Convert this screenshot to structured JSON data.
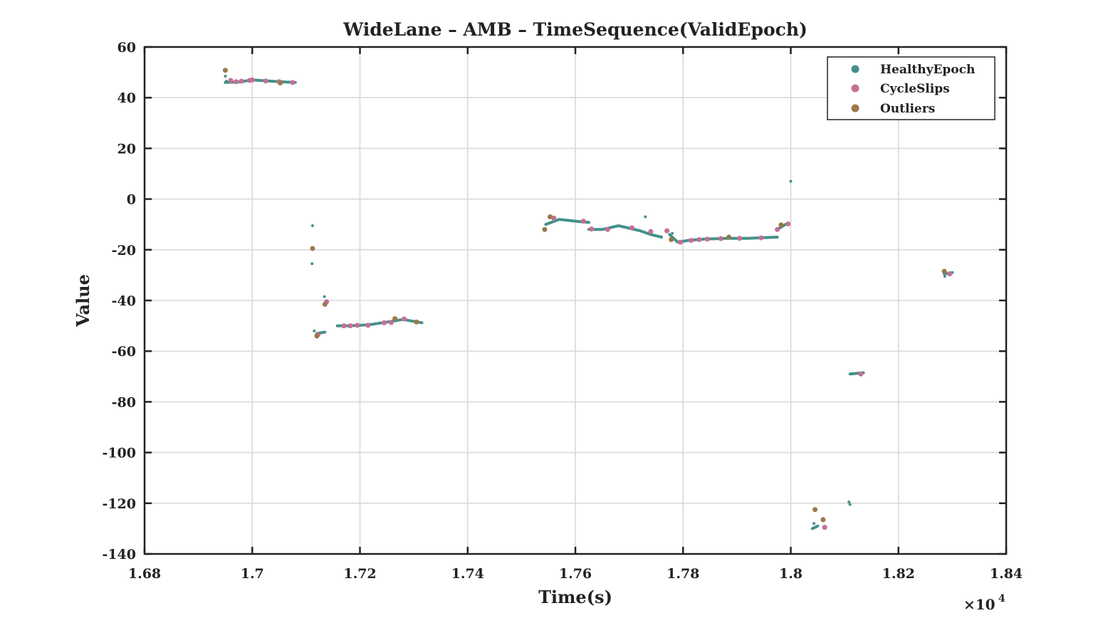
{
  "chart_data": {
    "type": "scatter",
    "title": "WideLane – AMB – TimeSequence(ValidEpoch)",
    "xlabel": "Time(s)",
    "ylabel": "Value",
    "x_multiplier_label": "×10",
    "x_multiplier_exponent": "4",
    "xlim": [
      1.68,
      1.84
    ],
    "ylim": [
      -140,
      60
    ],
    "x_ticks": [
      1.68,
      1.7,
      1.72,
      1.74,
      1.76,
      1.78,
      1.8,
      1.82,
      1.84
    ],
    "x_tick_labels": [
      "1.68",
      "1.7",
      "1.72",
      "1.74",
      "1.76",
      "1.78",
      "1.8",
      "1.82",
      "1.84"
    ],
    "y_ticks": [
      60,
      40,
      20,
      0,
      -20,
      -40,
      -60,
      -80,
      -100,
      -120,
      -140
    ],
    "y_tick_labels": [
      "60",
      "40",
      "20",
      "0",
      "-20",
      "-40",
      "-60",
      "-80",
      "-100",
      "-120",
      "-140"
    ],
    "grid": true,
    "legend_position": "top-right",
    "legend": [
      "HealthyEpoch",
      "CycleSlips",
      "Outliers"
    ],
    "colors": {
      "HealthyEpoch": "#43918a",
      "CycleSlips": "#c56f96",
      "Outliers": "#9a7848",
      "axis": "#222222",
      "grid": "#d9d9d9"
    },
    "healthy_segments": [
      {
        "x": [
          1.695,
          1.6975,
          1.7,
          1.703,
          1.706,
          1.708
        ],
        "y": [
          46.0,
          46.2,
          47.0,
          46.6,
          46.2,
          46.0
        ]
      },
      {
        "x": [
          1.712,
          1.7135
        ],
        "y": [
          -53.0,
          -52.5
        ]
      },
      {
        "x": [
          1.7158,
          1.718,
          1.72,
          1.722,
          1.725,
          1.728,
          1.7315
        ],
        "y": [
          -50.0,
          -50.0,
          -49.8,
          -49.5,
          -48.5,
          -47.5,
          -48.8
        ]
      },
      {
        "x": [
          1.7545,
          1.757,
          1.76,
          1.7625
        ],
        "y": [
          -10.0,
          -8.0,
          -8.7,
          -9.2
        ]
      },
      {
        "x": [
          1.7625,
          1.765,
          1.768,
          1.77,
          1.772,
          1.774,
          1.776
        ],
        "y": [
          -12.0,
          -12.0,
          -10.5,
          -11.5,
          -12.5,
          -14.0,
          -15.0
        ]
      },
      {
        "x": [
          1.7775,
          1.779,
          1.781,
          1.784,
          1.788,
          1.792,
          1.7975
        ],
        "y": [
          -14.0,
          -17.0,
          -16.3,
          -15.8,
          -15.5,
          -15.5,
          -15.0
        ]
      },
      {
        "x": [
          1.7975,
          1.799
        ],
        "y": [
          -12.0,
          -10.0
        ]
      },
      {
        "x": [
          1.804,
          1.805
        ],
        "y": [
          -130.0,
          -129.0
        ]
      },
      {
        "x": [
          1.811,
          1.8135
        ],
        "y": [
          -69.0,
          -68.5
        ]
      },
      {
        "x": [
          1.8285,
          1.83
        ],
        "y": [
          -29.5,
          -29.0
        ]
      }
    ],
    "healthy_points": [
      {
        "x": 1.695,
        "y": 48.5
      },
      {
        "x": 1.6952,
        "y": 46.5
      },
      {
        "x": 1.7112,
        "y": -10.5
      },
      {
        "x": 1.7111,
        "y": -25.5
      },
      {
        "x": 1.7134,
        "y": -38.5
      },
      {
        "x": 1.7115,
        "y": -52.0
      },
      {
        "x": 1.773,
        "y": -7.0
      },
      {
        "x": 1.778,
        "y": -13.5
      },
      {
        "x": 1.8,
        "y": 7.0
      },
      {
        "x": 1.8043,
        "y": -128.0
      },
      {
        "x": 1.806,
        "y": -126.0
      },
      {
        "x": 1.8108,
        "y": -119.5
      },
      {
        "x": 1.811,
        "y": -120.5
      },
      {
        "x": 1.8286,
        "y": -30.5
      }
    ],
    "cycle_slips": [
      {
        "x": 1.696,
        "y": 46.8
      },
      {
        "x": 1.697,
        "y": 46.3
      },
      {
        "x": 1.698,
        "y": 46.5
      },
      {
        "x": 1.6995,
        "y": 46.8
      },
      {
        "x": 1.7,
        "y": 47.0
      },
      {
        "x": 1.7025,
        "y": 46.6
      },
      {
        "x": 1.705,
        "y": 46.3
      },
      {
        "x": 1.7075,
        "y": 46.0
      },
      {
        "x": 1.7122,
        "y": -53.5
      },
      {
        "x": 1.7138,
        "y": -40.5
      },
      {
        "x": 1.717,
        "y": -50.0
      },
      {
        "x": 1.7182,
        "y": -50.0
      },
      {
        "x": 1.7195,
        "y": -49.8
      },
      {
        "x": 1.7215,
        "y": -49.8
      },
      {
        "x": 1.7245,
        "y": -48.8
      },
      {
        "x": 1.7258,
        "y": -48.7
      },
      {
        "x": 1.7282,
        "y": -47.3
      },
      {
        "x": 1.756,
        "y": -7.5
      },
      {
        "x": 1.7615,
        "y": -8.7
      },
      {
        "x": 1.763,
        "y": -11.8
      },
      {
        "x": 1.766,
        "y": -12.0
      },
      {
        "x": 1.7705,
        "y": -11.3
      },
      {
        "x": 1.774,
        "y": -12.8
      },
      {
        "x": 1.777,
        "y": -12.5
      },
      {
        "x": 1.7795,
        "y": -17.0
      },
      {
        "x": 1.7815,
        "y": -16.3
      },
      {
        "x": 1.783,
        "y": -16.0
      },
      {
        "x": 1.7845,
        "y": -15.8
      },
      {
        "x": 1.787,
        "y": -15.6
      },
      {
        "x": 1.7905,
        "y": -15.5
      },
      {
        "x": 1.7945,
        "y": -15.3
      },
      {
        "x": 1.7975,
        "y": -12.0
      },
      {
        "x": 1.7995,
        "y": -9.8
      },
      {
        "x": 1.8063,
        "y": -129.5
      },
      {
        "x": 1.813,
        "y": -69.0
      },
      {
        "x": 1.8295,
        "y": -29.5
      }
    ],
    "outliers": [
      {
        "x": 1.695,
        "y": 50.8
      },
      {
        "x": 1.7052,
        "y": 45.8
      },
      {
        "x": 1.7112,
        "y": -19.5
      },
      {
        "x": 1.712,
        "y": -54.0
      },
      {
        "x": 1.7135,
        "y": -41.5
      },
      {
        "x": 1.7265,
        "y": -47.2
      },
      {
        "x": 1.7305,
        "y": -48.5
      },
      {
        "x": 1.7543,
        "y": -12.0
      },
      {
        "x": 1.7553,
        "y": -7.0
      },
      {
        "x": 1.7778,
        "y": -16.0
      },
      {
        "x": 1.7885,
        "y": -15.0
      },
      {
        "x": 1.7982,
        "y": -10.2
      },
      {
        "x": 1.8045,
        "y": -122.5
      },
      {
        "x": 1.806,
        "y": -126.5
      },
      {
        "x": 1.8285,
        "y": -28.5
      }
    ]
  }
}
